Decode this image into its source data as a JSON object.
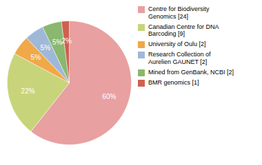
{
  "chart_data": {
    "type": "pie",
    "categories": [
      "Centre for Biodiversity\nGenomics [24]",
      "Canadian Centre for DNA\nBarcoding [9]",
      "University of Oulu [2]",
      "Research Collection of\nAurelien GAUNET [2]",
      "Mined from GenBank, NCBI [2]",
      "BMR genomics [1]"
    ],
    "values": [
      60,
      22,
      5,
      5,
      5,
      2
    ],
    "value_labels": [
      "60%",
      "22%",
      "5%",
      "5%",
      "5%",
      "2%"
    ],
    "colors": [
      "#e8a0a0",
      "#c8d47a",
      "#f0a848",
      "#a0b8d8",
      "#8ab870",
      "#d06050"
    ],
    "data_labels": true,
    "legend": "right"
  }
}
